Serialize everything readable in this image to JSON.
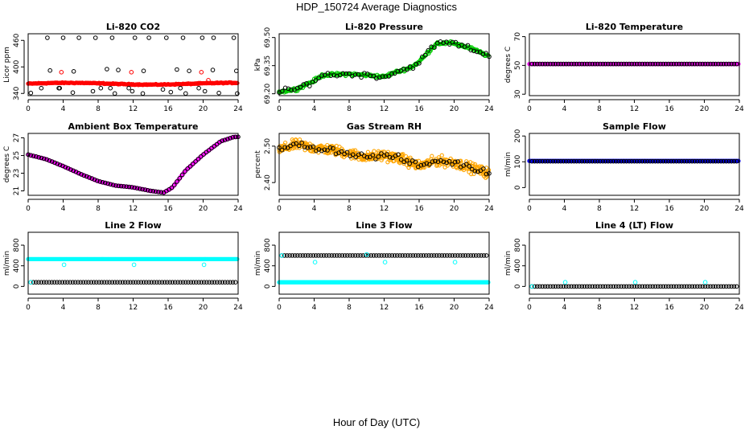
{
  "page": {
    "title": "HDP_150724  Average Diagnostics",
    "x_caption": "Hour of Day (UTC)"
  },
  "chart_data": [
    {
      "id": "co2",
      "type": "scatter",
      "title": "Li-820 CO2",
      "xlabel": "",
      "ylabel": "Licor ppm",
      "xlim": [
        0,
        24
      ],
      "ylim": [
        335,
        475
      ],
      "xticks": [
        0,
        4,
        8,
        12,
        16,
        20,
        24
      ],
      "yticks": [
        340,
        400,
        460
      ],
      "series": [
        {
          "color": "#ff0000",
          "kind": "band",
          "base": 362,
          "amp": 2,
          "jitter": 1.5,
          "ring": false
        },
        {
          "color": "#000000",
          "kind": "points",
          "ring": true,
          "x": [
            0.3,
            2.2,
            2.5,
            3.6,
            4.0,
            5.1,
            5.2,
            5.8,
            7.4,
            7.7,
            8.3,
            9.0,
            9.6,
            9.9,
            10.3,
            11.9,
            12.2,
            13.1,
            13.2,
            13.8,
            15.4,
            15.8,
            16.3,
            17.0,
            17.7,
            18.0,
            18.4,
            19.9,
            20.2,
            21.1,
            21.2,
            21.8,
            23.5,
            23.9,
            1.5,
            9.4,
            17.4,
            3.5,
            11.5,
            19.5,
            23.8
          ],
          "y": [
            341,
            466,
            392,
            352,
            466,
            342,
            390,
            466,
            345,
            466,
            352,
            395,
            466,
            340,
            393,
            345,
            466,
            340,
            391,
            466,
            349,
            466,
            343,
            394,
            466,
            340,
            391,
            466,
            345,
            393,
            466,
            341,
            466,
            340,
            352,
            352,
            352,
            352,
            352,
            352,
            391
          ]
        },
        {
          "color": "#ff0000",
          "kind": "points",
          "ring": true,
          "x": [
            3.8,
            11.8,
            19.8,
            20.6
          ],
          "y": [
            388,
            388,
            388,
            370
          ]
        }
      ]
    },
    {
      "id": "pressure",
      "type": "scatter",
      "title": "Li-820 Pressure",
      "xlabel": "",
      "ylabel": "kPa",
      "xlim": [
        0,
        24
      ],
      "ylim": [
        69.19,
        69.52
      ],
      "xticks": [
        0,
        4,
        8,
        12,
        16,
        20,
        24
      ],
      "yticks": [
        69.2,
        69.35,
        69.5
      ],
      "ytick_labels": [
        "69.20",
        "69.35",
        "69.50"
      ],
      "series": [
        {
          "color": "#00cc00",
          "kind": "band",
          "curve": "pressure",
          "jitter": 0.012,
          "ring": false
        },
        {
          "color": "#000000",
          "kind": "sparse",
          "curve": "pressure",
          "jitter": 0.02,
          "count": 70,
          "ring": true
        }
      ]
    },
    {
      "id": "temp",
      "type": "scatter",
      "title": "Li-820 Temperature",
      "xlabel": "",
      "ylabel": "degrees C",
      "xlim": [
        0,
        24
      ],
      "ylim": [
        29,
        72
      ],
      "xticks": [
        0,
        4,
        8,
        12,
        16,
        20,
        24
      ],
      "yticks": [
        30,
        50,
        70
      ],
      "series": [
        {
          "color": "#ff00ff",
          "kind": "flat",
          "value": 51,
          "ring": false
        },
        {
          "color": "#000000",
          "kind": "flatring",
          "value": 51,
          "ring": true
        }
      ]
    },
    {
      "id": "ambient",
      "type": "scatter",
      "title": "Ambient Box Temperature",
      "xlabel": "",
      "ylabel": "degrees C",
      "xlim": [
        0,
        24
      ],
      "ylim": [
        20.5,
        27.5
      ],
      "xticks": [
        0,
        4,
        8,
        12,
        16,
        20,
        24
      ],
      "yticks": [
        21,
        23,
        25,
        27
      ],
      "series": [
        {
          "color": "#ff00ff",
          "kind": "band",
          "curve": "ambient",
          "jitter": 0.02,
          "ring": false
        },
        {
          "color": "#000000",
          "kind": "sparse",
          "curve": "ambient",
          "jitter": 0.02,
          "count": 80,
          "ring": true
        }
      ]
    },
    {
      "id": "rh",
      "type": "scatter",
      "title": "Gas Stream RH",
      "xlabel": "",
      "ylabel": "percent",
      "xlim": [
        0,
        24
      ],
      "ylim": [
        2.365,
        2.535
      ],
      "xticks": [
        0,
        4,
        8,
        12,
        16,
        20,
        24
      ],
      "yticks": [
        2.4,
        2.5
      ],
      "ytick_labels": [
        "2.40",
        "2.50"
      ],
      "series": [
        {
          "color": "#ffa500",
          "kind": "cloud",
          "curve": "rh",
          "jitter": 0.02,
          "ring": false
        },
        {
          "color": "#000000",
          "kind": "sparse",
          "curve": "rh",
          "jitter": 0.012,
          "count": 75,
          "ring": true
        }
      ]
    },
    {
      "id": "sample",
      "type": "scatter",
      "title": "Sample Flow",
      "xlabel": "",
      "ylabel": "ml/min",
      "xlim": [
        0,
        24
      ],
      "ylim": [
        -30,
        210
      ],
      "xticks": [
        0,
        4,
        8,
        12,
        16,
        20,
        24
      ],
      "yticks": [
        0,
        100,
        200
      ],
      "series": [
        {
          "color": "#0000ff",
          "kind": "flat",
          "value": 103,
          "ring": false
        },
        {
          "color": "#000000",
          "kind": "flatring",
          "value": 102,
          "ring": true
        }
      ]
    },
    {
      "id": "line2",
      "type": "scatter",
      "title": "Line 2 Flow",
      "xlabel": "",
      "ylabel": "ml/min",
      "xlim": [
        0,
        24
      ],
      "ylim": [
        -150,
        1050
      ],
      "xticks": [
        0,
        4,
        8,
        12,
        16,
        20,
        24
      ],
      "yticks": [
        0,
        400,
        800
      ],
      "series": [
        {
          "color": "#00ffff",
          "kind": "flat",
          "value": 530,
          "ring": false
        },
        {
          "color": "#000000",
          "kind": "flatring",
          "value": 80,
          "ring": true
        },
        {
          "color": "#00ffff",
          "kind": "points",
          "ring": true,
          "x": [
            0.3,
            4.1,
            12.1,
            20.1
          ],
          "y": [
            80,
            420,
            420,
            420
          ]
        }
      ]
    },
    {
      "id": "line3",
      "type": "scatter",
      "title": "Line 3 Flow",
      "xlabel": "",
      "ylabel": "ml/min",
      "xlim": [
        0,
        24
      ],
      "ylim": [
        -150,
        1050
      ],
      "xticks": [
        0,
        4,
        8,
        12,
        16,
        20,
        24
      ],
      "yticks": [
        0,
        400,
        800
      ],
      "series": [
        {
          "color": "#00ffff",
          "kind": "flat",
          "value": 80,
          "ring": false
        },
        {
          "color": "#000000",
          "kind": "flatring",
          "value": 600,
          "ring": true
        },
        {
          "color": "#00ffff",
          "kind": "points",
          "ring": true,
          "x": [
            0.3,
            4.1,
            12.1,
            20.1,
            10.0
          ],
          "y": [
            600,
            470,
            470,
            470,
            620
          ]
        }
      ]
    },
    {
      "id": "line4",
      "type": "scatter",
      "title": "Line 4 (LT) Flow",
      "xlabel": "",
      "ylabel": "ml/min",
      "xlim": [
        0,
        24
      ],
      "ylim": [
        -150,
        1050
      ],
      "xticks": [
        0,
        4,
        8,
        12,
        16,
        20,
        24
      ],
      "yticks": [
        0,
        400,
        800
      ],
      "series": [
        {
          "color": "#000000",
          "kind": "flatring",
          "value": 0,
          "ring": true
        },
        {
          "color": "#00ffff",
          "kind": "points",
          "ring": true,
          "x": [
            0.3,
            4.1,
            12.1,
            20.1
          ],
          "y": [
            0,
            80,
            80,
            80
          ]
        }
      ]
    }
  ]
}
